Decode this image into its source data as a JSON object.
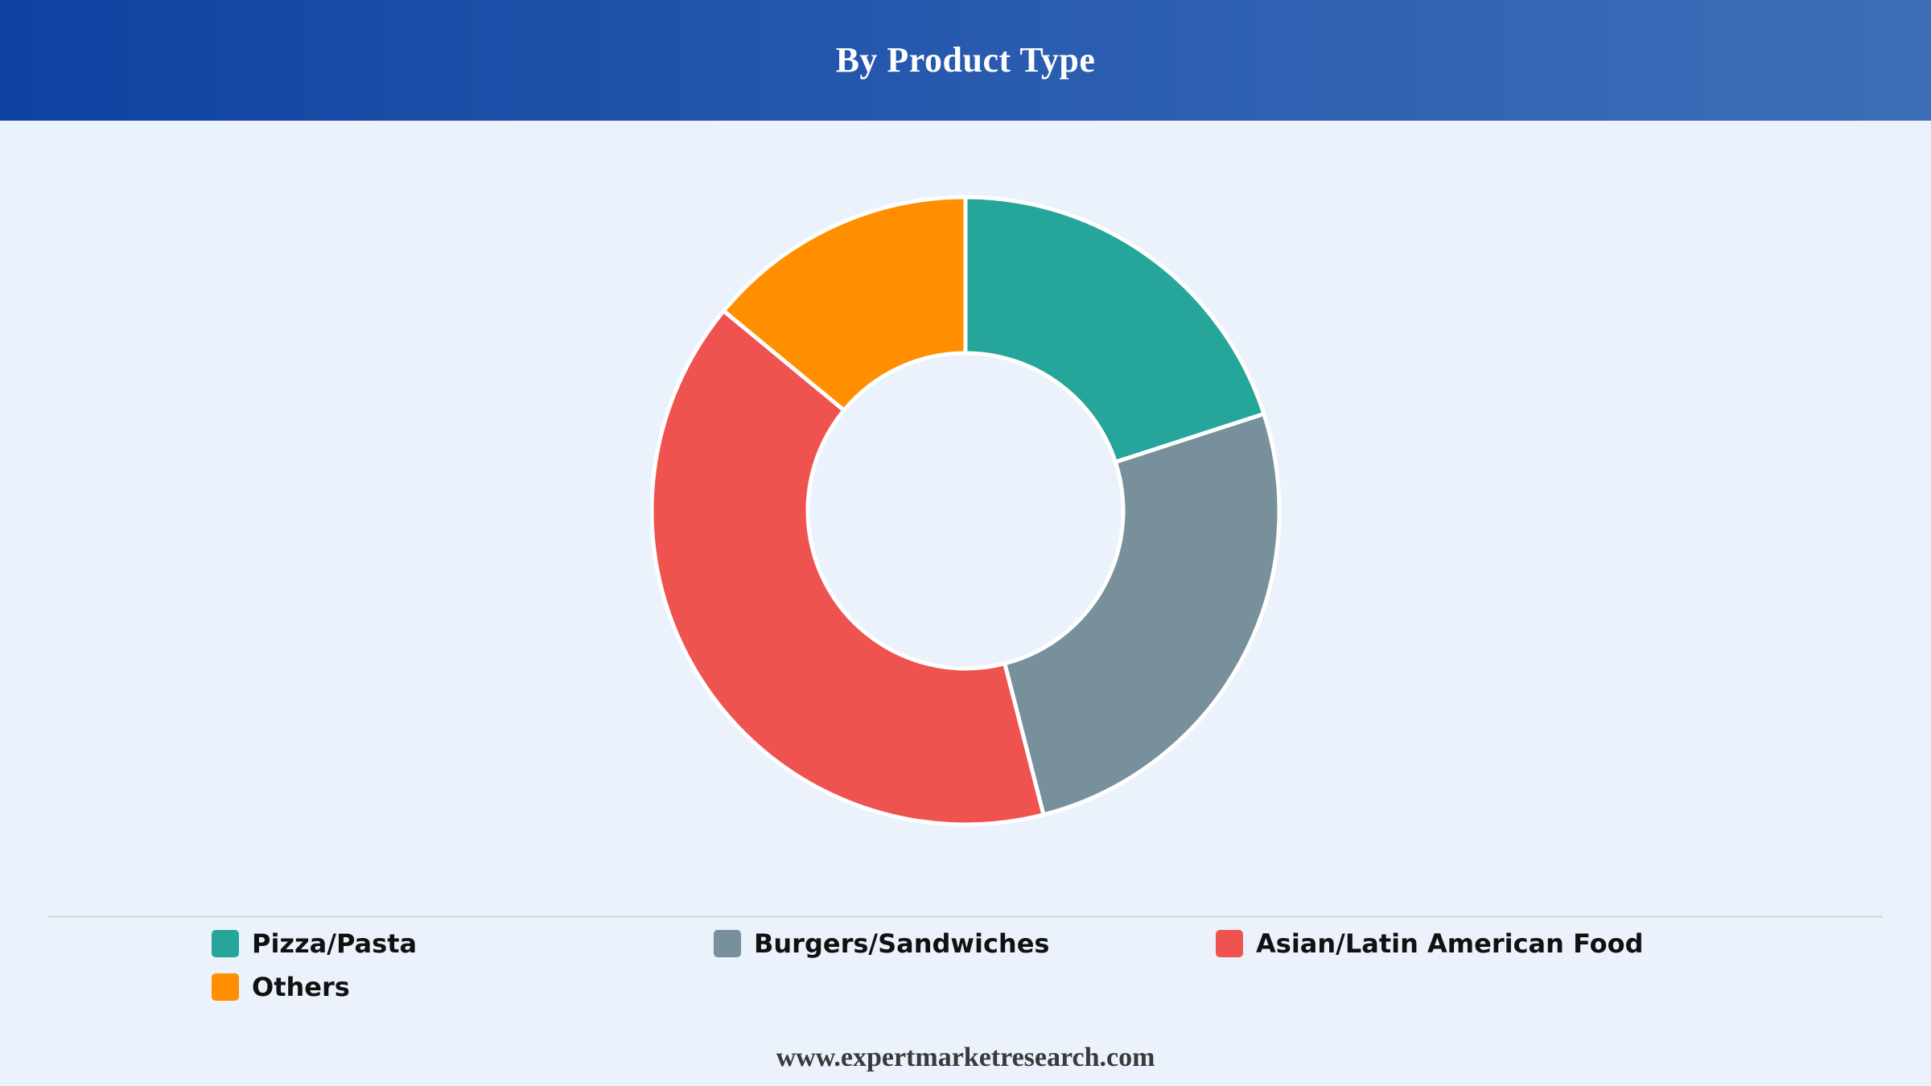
{
  "header": {
    "title": "By Product Type"
  },
  "chart_data": {
    "type": "pie",
    "donut": true,
    "title": "By Product Type",
    "categories": [
      "Pizza/Pasta",
      "Burgers/Sandwiches",
      "Asian/Latin American Food",
      "Others"
    ],
    "values": [
      20,
      26,
      40,
      14
    ],
    "unit": "%",
    "colors": [
      "#26a69a",
      "#78909c",
      "#ef5350",
      "#ff8f00"
    ],
    "legend_position": "bottom",
    "start_angle_deg": 0,
    "direction": "clockwise"
  },
  "footer": {
    "website": "www.expertmarketresearch.com"
  }
}
